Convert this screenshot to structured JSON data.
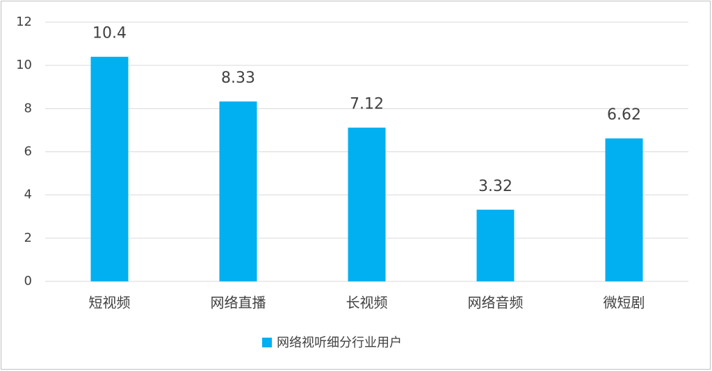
{
  "chart_data": {
    "type": "bar",
    "categories": [
      "短视频",
      "网络直播",
      "长视频",
      "网络音频",
      "微短剧"
    ],
    "series": [
      {
        "name": "网络视听细分行业用户",
        "color": "#00b0f0",
        "values": [
          10.4,
          8.33,
          7.12,
          3.32,
          6.62
        ]
      }
    ],
    "ylim": [
      0,
      12
    ],
    "yticks": [
      0,
      2,
      4,
      6,
      8,
      10,
      12
    ],
    "grid": true,
    "legend": "bottom"
  }
}
